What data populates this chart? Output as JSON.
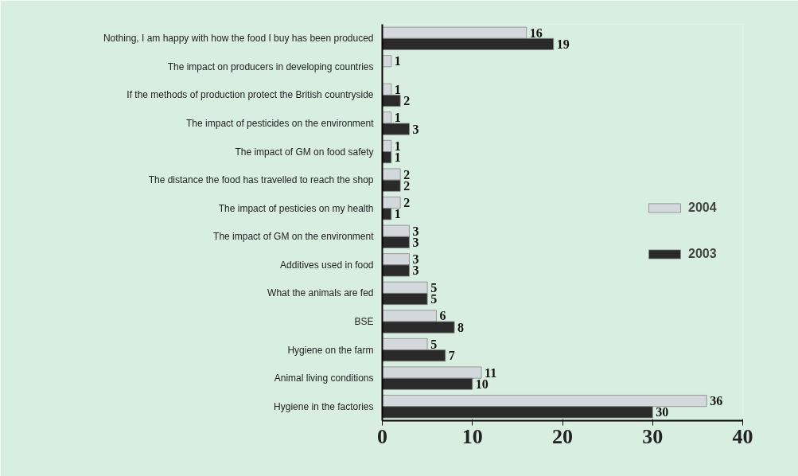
{
  "chart_data": {
    "type": "bar",
    "orientation": "horizontal",
    "categories": [
      "Nothing, I am happy with how the food I buy has been produced",
      "The impact on producers in developing countries",
      "If the methods of production protect the British countryside",
      "The impact of pesticides on the environment",
      "The impact of GM on food safety",
      "The distance the food has travelled to reach the shop",
      "The impact of pesticies on my health",
      "The impact of GM on the environment",
      "Additives used in food",
      "What the animals are fed",
      "BSE",
      "Hygiene on the farm",
      "Animal living conditions",
      "Hygiene in the factories"
    ],
    "series": [
      {
        "name": "2004",
        "color": "#d3d8dc",
        "values": [
          16,
          1,
          1,
          1,
          1,
          2,
          2,
          3,
          3,
          5,
          6,
          5,
          11,
          36
        ]
      },
      {
        "name": "2003",
        "color": "#2a2a2a",
        "values": [
          19,
          null,
          2,
          3,
          1,
          2,
          1,
          3,
          3,
          5,
          8,
          7,
          10,
          30
        ]
      }
    ],
    "xlim": [
      0,
      40
    ],
    "xticks": [
      0,
      10,
      20,
      30,
      40
    ],
    "data_labels": true,
    "legend": "right",
    "grid": false
  }
}
